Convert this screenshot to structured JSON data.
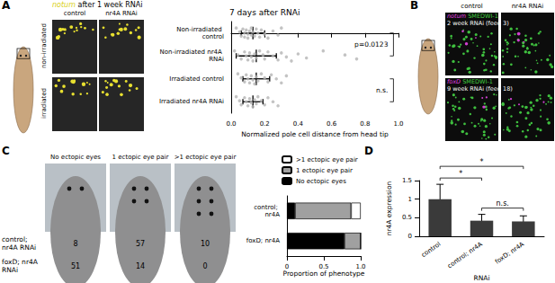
{
  "panels": {
    "A": {
      "label": "A",
      "image_title": "notum after 1 week RNAi",
      "columns": [
        "control",
        "nr4A RNAi"
      ],
      "rows": [
        "non-irradiated",
        "irradiated"
      ]
    },
    "B": {
      "label": "B",
      "columns": [
        "control",
        "nr4A RNAi"
      ],
      "rows": [
        {
          "stain": "notum SMEDWI-1",
          "time": "2 week RNAi (feed 3)"
        },
        {
          "stain": "foxD SMEDWI-1",
          "time": "9 week RNAi (feed 18)"
        }
      ]
    },
    "C": {
      "label": "C",
      "columns": [
        "No ectopic eyes",
        "1 ectopic eye pair",
        ">1 ectopic eye pair"
      ],
      "rows": [
        {
          "name": "control; nr4A RNAi",
          "counts": [
            8,
            57,
            10
          ]
        },
        {
          "name": "foxD; nr4A RNAi",
          "counts": [
            51,
            14,
            0
          ]
        }
      ]
    },
    "D": {
      "label": "D"
    }
  },
  "chart_data": [
    {
      "type": "scatter",
      "title": "7 days after RNAi",
      "categories": [
        "Non-irradiated control",
        "Non-irradiated nr4A RNAi",
        "Irradiated control",
        "Irradiated nr4A RNAi"
      ],
      "values": [
        [
          0.03,
          0.05,
          0.06,
          0.07,
          0.08,
          0.08,
          0.09,
          0.1,
          0.1,
          0.11,
          0.12,
          0.12,
          0.13,
          0.14,
          0.15,
          0.16,
          0.17,
          0.18,
          0.2,
          0.22,
          0.25,
          0.28,
          0.3
        ],
        [
          0.02,
          0.04,
          0.06,
          0.08,
          0.09,
          0.1,
          0.11,
          0.12,
          0.13,
          0.14,
          0.15,
          0.17,
          0.19,
          0.2,
          0.22,
          0.25,
          0.28,
          0.3,
          0.33,
          0.36,
          0.4,
          0.45,
          0.55,
          0.68,
          0.75
        ],
        [
          0.04,
          0.06,
          0.08,
          0.09,
          0.1,
          0.11,
          0.12,
          0.13,
          0.14,
          0.15,
          0.16,
          0.18,
          0.2,
          0.22,
          0.24,
          0.27,
          0.3,
          0.33
        ],
        [
          0.03,
          0.05,
          0.06,
          0.08,
          0.09,
          0.1,
          0.11,
          0.12,
          0.13,
          0.14,
          0.15,
          0.16,
          0.18,
          0.2,
          0.22,
          0.25,
          0.28
        ]
      ],
      "means": [
        0.13,
        0.15,
        0.15,
        0.13
      ],
      "errors": [
        0.07,
        0.12,
        0.08,
        0.06
      ],
      "color": "#b4b4b4",
      "x_label": "Normalized pole cell distance from head tip",
      "xlim": [
        0,
        1
      ],
      "xticks": [
        {
          "value": 0,
          "label": "0.0"
        },
        0.2,
        0.4,
        0.6,
        0.8,
        {
          "value": 1,
          "label": "1.0"
        }
      ],
      "annotations": [
        {
          "text": "p=0.0123",
          "between": [
            0,
            1
          ]
        },
        {
          "text": "n.s.",
          "between": [
            2,
            3
          ]
        }
      ]
    },
    {
      "type": "bar",
      "orientation": "horizontal",
      "stacked": true,
      "categories": [
        "control; nr4A",
        "foxD; nr4A"
      ],
      "series": [
        {
          "name": "No ectopic eyes",
          "color": "#000000",
          "values": [
            0.11,
            0.78
          ]
        },
        {
          "name": "1 ectopic eye pair",
          "color": "#a0a0a0",
          "values": [
            0.76,
            0.22
          ]
        },
        {
          "name": ">1 ectopic eye pair",
          "color": "#ffffff",
          "values": [
            0.13,
            0
          ]
        }
      ],
      "x_label": "Proportion of phenotype",
      "xlim": [
        0,
        1
      ],
      "xticks": [
        0,
        0.5,
        {
          "value": 1,
          "label": "1.0"
        }
      ],
      "legend": "top"
    },
    {
      "type": "bar",
      "categories": [
        "control",
        "control; nr4A",
        "foxD; nr4A"
      ],
      "values": [
        1.0,
        0.42,
        0.4
      ],
      "errors": [
        0.4,
        0.17,
        0.15
      ],
      "color": "#3a3a3a",
      "y_label": "nr4A expression",
      "x_label": "RNAi",
      "ylim": [
        0,
        1.5
      ],
      "yticks": [
        0,
        0.5,
        1,
        1.5
      ],
      "annotations": [
        {
          "text": "*",
          "between": [
            0,
            1
          ]
        },
        {
          "text": "*",
          "between": [
            0,
            2
          ]
        },
        {
          "text": "n.s.",
          "between": [
            1,
            2
          ]
        }
      ]
    }
  ]
}
